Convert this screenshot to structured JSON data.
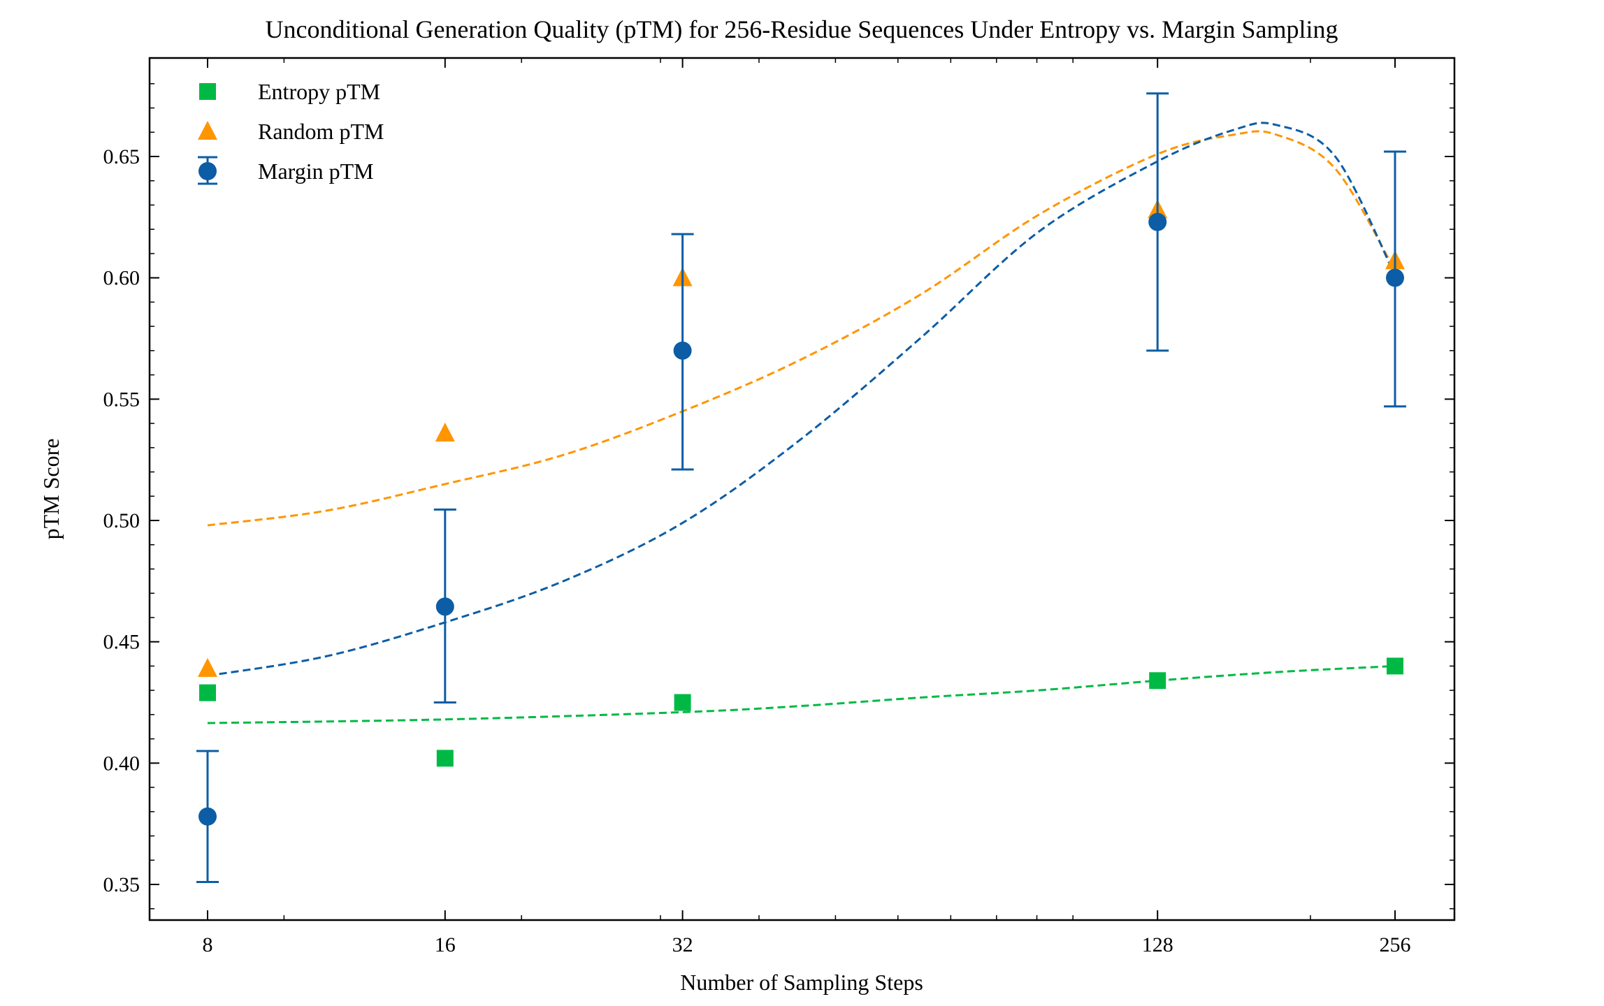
{
  "chart_data": {
    "type": "scatter",
    "title": "Unconditional Generation Quality (pTM) for 256-Residue Sequences Under Entropy vs. Margin Sampling",
    "xlabel": "Number of Sampling Steps",
    "ylabel": "pTM Score",
    "xscale": "log2",
    "xlim": [
      6.8,
      300
    ],
    "ylim": [
      0.334,
      0.69
    ],
    "xticks": [
      8,
      16,
      32,
      128,
      256
    ],
    "xtick_labels": [
      "8",
      "16",
      "32",
      "128",
      "256"
    ],
    "yticks": [
      0.35,
      0.4,
      0.45,
      0.5,
      0.55,
      0.6,
      0.65
    ],
    "ytick_labels": [
      "0.35",
      "0.40",
      "0.45",
      "0.50",
      "0.55",
      "0.60",
      "0.65"
    ],
    "grid": false,
    "legend_position": "top-left",
    "x": [
      8,
      16,
      32,
      128,
      256
    ],
    "series": [
      {
        "name": "Entropy pTM",
        "marker": "square",
        "color": "#00b945",
        "values": [
          0.429,
          0.402,
          0.425,
          0.434,
          0.44
        ],
        "fit": {
          "x": [
            8,
            16,
            32,
            45,
            64,
            90.5,
            128,
            181,
            256
          ],
          "y": [
            0.4165,
            0.418,
            0.421,
            0.4235,
            0.427,
            0.43,
            0.434,
            0.4375,
            0.44
          ]
        }
      },
      {
        "name": "Random pTM",
        "marker": "triangle",
        "color": "#ff9500",
        "values": [
          0.439,
          0.536,
          0.6,
          0.628,
          0.607
        ],
        "fit": {
          "x": [
            8,
            11.3,
            16,
            22.6,
            32,
            45,
            64,
            90.5,
            128,
            160,
            181,
            215,
            256
          ],
          "y": [
            0.498,
            0.504,
            0.515,
            0.527,
            0.545,
            0.566,
            0.593,
            0.626,
            0.651,
            0.659,
            0.659,
            0.645,
            0.603
          ]
        }
      },
      {
        "name": "Margin pTM",
        "marker": "circle",
        "color": "#0c5da5",
        "values": [
          0.378,
          0.4645,
          0.57,
          0.623,
          0.6
        ],
        "error_low": [
          0.351,
          0.425,
          0.521,
          0.57,
          0.547
        ],
        "error_high": [
          0.405,
          0.5045,
          0.618,
          0.676,
          0.652
        ],
        "fit": {
          "x": [
            8,
            11.3,
            16,
            22.6,
            32,
            45,
            64,
            90.5,
            128,
            160,
            181,
            215,
            256
          ],
          "y": [
            0.436,
            0.444,
            0.458,
            0.475,
            0.499,
            0.533,
            0.575,
            0.619,
            0.648,
            0.661,
            0.663,
            0.65,
            0.601
          ]
        }
      }
    ]
  }
}
